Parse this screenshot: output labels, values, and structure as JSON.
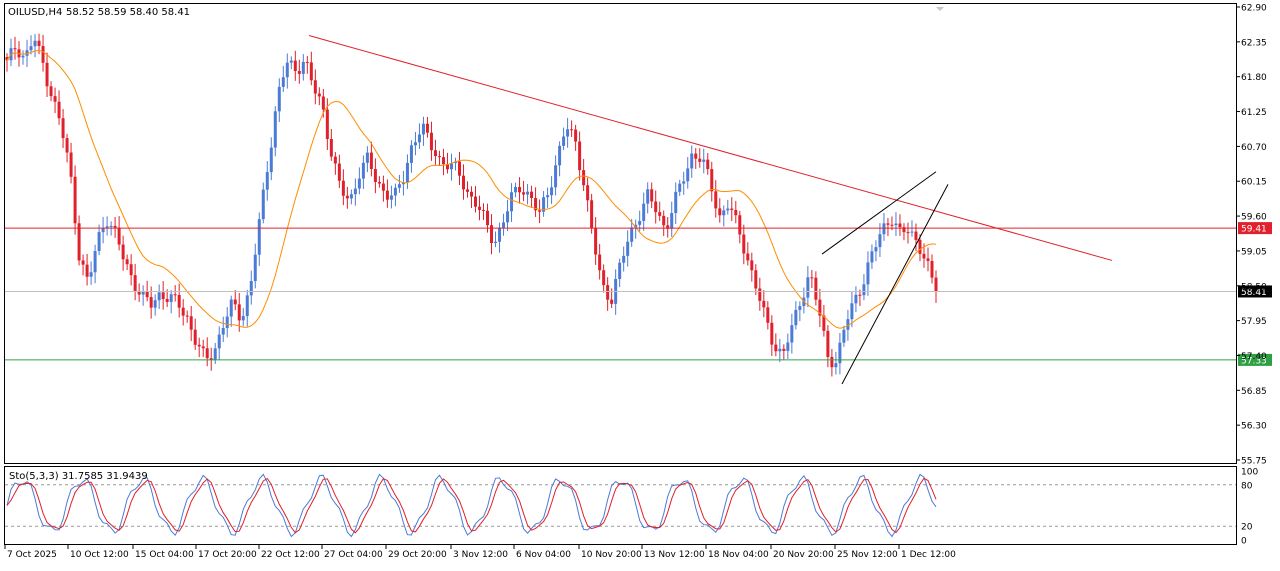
{
  "header": {
    "symbol": "OILUSD,H4",
    "ohlc": "58.52 58.59 58.40 58.41"
  },
  "stochastic": {
    "label": "Sto(5,3,3) 31.7585 31.9439",
    "upper_level": 80,
    "lower_level": 20,
    "scale_labels": [
      "100",
      "80",
      "20",
      "0"
    ]
  },
  "chart_data": {
    "type": "candlestick",
    "symbol": "OILUSD",
    "timeframe": "H4",
    "ylim": [
      55.75,
      62.9
    ],
    "y_ticks": [
      "62.90",
      "62.35",
      "61.80",
      "61.25",
      "60.70",
      "60.15",
      "59.60",
      "59.05",
      "58.50",
      "57.95",
      "57.40",
      "56.85",
      "56.30",
      "55.75"
    ],
    "x_ticks": [
      "7 Oct 2025",
      "10 Oct 12:00",
      "15 Oct 04:00",
      "17 Oct 20:00",
      "22 Oct 12:00",
      "27 Oct 04:00",
      "29 Oct 20:00",
      "3 Nov 12:00",
      "6 Nov 04:00",
      "10 Nov 20:00",
      "13 Nov 12:00",
      "18 Nov 04:00",
      "20 Nov 20:00",
      "25 Nov 12:00",
      "1 Dec 12:00"
    ],
    "last_ohlc": {
      "open": 58.52,
      "high": 58.59,
      "low": 58.4,
      "close": 58.41
    },
    "close_path": [
      [
        62.0,
        62.3,
        62.1,
        62.4,
        62.0,
        61.5,
        61.0,
        60.3,
        59.0,
        58.5,
        59.2,
        59.6,
        59.3,
        58.9
      ],
      [
        58.6,
        58.3,
        58.2,
        58.4,
        58.3,
        58.2,
        58.0,
        57.6,
        57.3,
        57.5,
        57.9,
        58.2,
        58.0,
        58.5,
        59.5,
        60.5,
        61.5,
        62.0,
        61.9,
        62.1,
        61.6,
        61.3,
        60.6,
        60.0,
        59.8
      ],
      [
        60.3,
        60.5,
        60.1,
        60.0,
        59.9,
        60.2,
        60.8,
        61.0,
        60.7,
        60.5,
        60.4,
        60.3,
        60.0,
        59.8,
        59.5,
        59.2,
        59.5,
        59.9,
        60.1,
        59.9,
        59.6
      ],
      [
        60.0,
        60.5,
        61.0,
        60.8,
        60.1,
        59.2,
        58.5,
        58.3,
        58.8,
        59.3,
        59.6,
        59.9,
        59.7,
        59.4,
        59.8,
        60.2,
        60.6,
        60.5,
        60.1,
        59.6
      ],
      [
        59.8,
        59.4,
        59.0,
        58.5,
        58.0,
        57.6,
        57.4,
        57.8,
        58.3,
        58.7,
        58.1,
        57.4,
        57.3,
        57.9,
        58.3,
        58.6,
        59.0,
        59.4,
        59.6,
        59.3,
        59.4,
        59.2,
        58.8,
        58.4
      ]
    ],
    "moving_average": {
      "color": "#ff8c00"
    },
    "horizontal_levels": [
      {
        "value": 59.41,
        "color": "#e0202a",
        "label": "59.41"
      },
      {
        "value": 58.41,
        "color": "#c0c0c0",
        "label": "58.41"
      },
      {
        "value": 57.33,
        "color": "#2ea043",
        "label": "57.33"
      }
    ],
    "trendline": {
      "from": {
        "x": "22 Oct 12:00",
        "y": 62.45
      },
      "to": {
        "x": "3 Dec",
        "y": 58.9
      },
      "color": "#e0202a"
    },
    "wedge": {
      "color": "#000000"
    },
    "colors": {
      "bull": "#4b7bd6",
      "bear": "#e0202a",
      "axis": "#000000",
      "grid_dotted": "#9a9a9a"
    }
  }
}
